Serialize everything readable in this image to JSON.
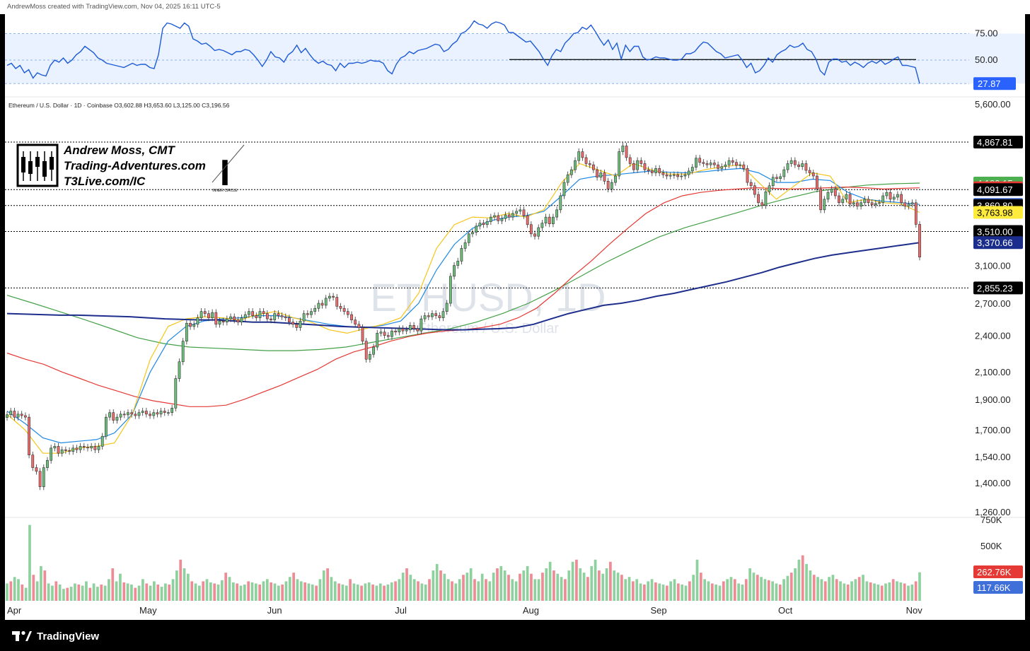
{
  "header": {
    "created_by": "AndrewMoss created with TradingView.com, Nov 04, 2025 16:11 UTC-5"
  },
  "footer": {
    "brand": "TradingView"
  },
  "legend_line": "Ethereum / U.S. Dollar · 1D · Coinbase  O3,602.88  H3,653.60  L3,125.00  C3,196.56",
  "watermark": {
    "symbol": "ETHUSD, 1D",
    "name": "Ethereum / U.S. Dollar"
  },
  "author": {
    "line1": "Andrew Moss, CMT",
    "line2": "Trading-Adventures.com",
    "line3": "T3Live.com/IC",
    "logo_caption": "INNER CIRCLE"
  },
  "colors": {
    "up": "#6bbf7b",
    "down": "#ef6b6b",
    "sma200": "#1e2e8c",
    "sma50": "#e53935",
    "sma100": "#43a047",
    "ema10": "#f5c518",
    "ema20": "#1e88e5",
    "rsi": "#1e5bd6"
  },
  "chart_data": [
    {
      "type": "line",
      "panel": "RSI",
      "ylim": [
        20,
        90
      ],
      "levels": [
        75,
        50,
        27.87
      ],
      "y_tick_labels": [
        "75.00",
        "50.00"
      ],
      "last_value_label": "27.87",
      "horizontal_line_level": 50.5,
      "values": [
        45,
        47,
        42,
        45,
        38,
        41,
        33,
        38,
        36,
        35,
        45,
        50,
        48,
        52,
        47,
        50,
        55,
        58,
        63,
        60,
        57,
        52,
        50,
        47,
        46,
        45,
        44,
        43,
        45,
        47,
        45,
        46,
        46,
        43,
        42,
        55,
        80,
        85,
        84,
        82,
        80,
        85,
        82,
        70,
        68,
        65,
        66,
        63,
        59,
        60,
        59,
        57,
        55,
        58,
        58,
        60,
        59,
        55,
        50,
        44,
        50,
        58,
        53,
        52,
        48,
        55,
        58,
        64,
        57,
        61,
        55,
        50,
        47,
        49,
        46,
        45,
        40,
        47,
        43,
        47,
        47,
        48,
        47,
        48,
        50,
        49,
        49,
        47,
        40,
        37,
        46,
        52,
        54,
        58,
        56,
        59,
        60,
        61,
        63,
        65,
        64,
        58,
        60,
        65,
        68,
        75,
        77,
        81,
        87,
        84,
        83,
        80,
        84,
        86,
        85,
        83,
        76,
        76,
        73,
        70,
        67,
        68,
        63,
        58,
        51,
        45,
        54,
        60,
        58,
        66,
        70,
        75,
        76,
        81,
        79,
        83,
        77,
        70,
        64,
        69,
        60,
        66,
        51,
        64,
        58,
        63,
        63,
        53,
        50,
        51,
        53,
        52,
        52,
        51,
        50,
        50,
        51,
        56,
        56,
        58,
        63,
        67,
        66,
        62,
        58,
        56,
        52,
        53,
        54,
        55,
        50,
        43,
        47,
        38,
        40,
        45,
        52,
        48,
        55,
        58,
        60,
        64,
        62,
        63,
        66,
        60,
        58,
        51,
        40,
        36,
        48,
        51,
        51,
        48,
        49,
        45,
        48,
        46,
        43,
        47,
        49,
        47,
        50,
        46,
        48,
        51,
        53,
        45,
        45,
        44,
        43,
        27.87
      ]
    },
    {
      "type": "candlestick",
      "panel": "Price",
      "ylim": [
        1240,
        5700
      ],
      "scale": "log",
      "x_tick_labels": [
        "Apr",
        "May",
        "Jun",
        "Jul",
        "Aug",
        "Sep",
        "Oct",
        "Nov"
      ],
      "y_tick_labels": [
        "5,600.00",
        "3,100.00",
        "2,700.00",
        "2,400.00",
        "2,100.00",
        "1,900.00",
        "1,700.00",
        "1,540.00",
        "1,400.00",
        "1,260.00"
      ],
      "price_labels": [
        {
          "text": "4,867.81",
          "value": 4867.81,
          "style": "black"
        },
        {
          "text": "4,190.15",
          "value": 4190.15,
          "style": "green"
        },
        {
          "text": "4,118.83",
          "value": 4118.83,
          "style": "red"
        },
        {
          "text": "4,091.67",
          "value": 4091.67,
          "style": "black"
        },
        {
          "text": "3,875.74",
          "value": 3875.74,
          "style": "blue"
        },
        {
          "text": "3,860.80",
          "value": 3860.8,
          "style": "black"
        },
        {
          "text": "3,763.98",
          "value": 3763.98,
          "style": "yellow"
        },
        {
          "text": "3,510.00",
          "value": 3510.0,
          "style": "black"
        },
        {
          "text": "3,370.66",
          "value": 3370.66,
          "style": "navy"
        },
        {
          "text": "2,855.23",
          "value": 2855.23,
          "style": "black"
        }
      ],
      "horizontal_levels": [
        4867.81,
        4091.67,
        3860.8,
        3510.0,
        2855.23
      ],
      "closes": [
        1796,
        1820,
        1780,
        1800,
        1790,
        1780,
        1550,
        1480,
        1460,
        1380,
        1480,
        1520,
        1590,
        1600,
        1560,
        1580,
        1575,
        1570,
        1590,
        1580,
        1600,
        1595,
        1590,
        1600,
        1580,
        1600,
        1660,
        1780,
        1810,
        1760,
        1780,
        1800,
        1795,
        1810,
        1800,
        1790,
        1810,
        1820,
        1800,
        1790,
        1810,
        1800,
        1820,
        1810,
        1810,
        1840,
        2050,
        2180,
        2350,
        2510,
        2480,
        2500,
        2560,
        2620,
        2600,
        2560,
        2610,
        2500,
        2530,
        2520,
        2550,
        2570,
        2540,
        2520,
        2560,
        2590,
        2620,
        2580,
        2560,
        2620,
        2600,
        2550,
        2540,
        2600,
        2580,
        2570,
        2560,
        2520,
        2500,
        2470,
        2530,
        2600,
        2590,
        2620,
        2650,
        2700,
        2680,
        2750,
        2770,
        2760,
        2670,
        2650,
        2620,
        2590,
        2540,
        2500,
        2470,
        2350,
        2200,
        2240,
        2300,
        2420,
        2430,
        2400,
        2390,
        2440,
        2430,
        2460,
        2440,
        2450,
        2490,
        2460,
        2440,
        2550,
        2580,
        2570,
        2600,
        2580,
        2560,
        2620,
        2700,
        2980,
        3100,
        3150,
        3300,
        3370,
        3480,
        3500,
        3580,
        3620,
        3600,
        3640,
        3700,
        3720,
        3650,
        3680,
        3730,
        3700,
        3750,
        3780,
        3800,
        3720,
        3600,
        3480,
        3450,
        3560,
        3620,
        3700,
        3610,
        3700,
        3800,
        4000,
        4200,
        4320,
        4400,
        4550,
        4700,
        4600,
        4500,
        4480,
        4400,
        4280,
        4350,
        4220,
        4100,
        4200,
        4300,
        4700,
        4800,
        4600,
        4500,
        4400,
        4550,
        4500,
        4400,
        4380,
        4350,
        4420,
        4350,
        4320,
        4300,
        4310,
        4320,
        4290,
        4300,
        4320,
        4380,
        4440,
        4590,
        4520,
        4500,
        4480,
        4510,
        4480,
        4420,
        4450,
        4480,
        4550,
        4520,
        4470,
        4480,
        4420,
        4200,
        4150,
        4020,
        3900,
        3860,
        4060,
        4150,
        4280,
        4260,
        4290,
        4400,
        4500,
        4550,
        4480,
        4450,
        4500,
        4390,
        4350,
        4300,
        4100,
        3800,
        3950,
        4050,
        4100,
        4000,
        3900,
        3950,
        4020,
        3880,
        3900,
        3850,
        3900,
        3950,
        3900,
        3870,
        3890,
        3900,
        4000,
        4050,
        3950,
        3980,
        4020,
        3900,
        3850,
        3880,
        3900,
        3602.88,
        3196.56
      ],
      "sma200": [
        2600,
        2595,
        2590,
        2585,
        2585,
        2580,
        2575,
        2570,
        2560,
        2550,
        2545,
        2540,
        2540,
        2530,
        2520,
        2520,
        2510,
        2500,
        2490,
        2480,
        2475,
        2470,
        2465,
        2460,
        2455,
        2450,
        2450,
        2455,
        2460,
        2470,
        2500,
        2550,
        2600,
        2640,
        2680,
        2700,
        2730,
        2770,
        2800,
        2840,
        2880,
        2920,
        2970,
        3020,
        3080,
        3130,
        3180,
        3220,
        3250,
        3280,
        3310,
        3340,
        3370.66
      ],
      "sma50": [
        2250,
        2200,
        2160,
        2100,
        2050,
        2000,
        1960,
        1920,
        1890,
        1870,
        1850,
        1850,
        1860,
        1900,
        1950,
        2000,
        2060,
        2120,
        2200,
        2260,
        2300,
        2350,
        2390,
        2420,
        2440,
        2450,
        2470,
        2500,
        2560,
        2650,
        2800,
        2980,
        3150,
        3350,
        3550,
        3750,
        3900,
        4000,
        4050,
        4080,
        4100,
        4120,
        4110,
        4100,
        4110,
        4120,
        4130,
        4120,
        4100,
        4110,
        4118.83
      ],
      "sma100": [
        2780,
        2700,
        2620,
        2540,
        2460,
        2380,
        2330,
        2300,
        2290,
        2280,
        2270,
        2270,
        2280,
        2300,
        2340,
        2380,
        2420,
        2460,
        2520,
        2600,
        2700,
        2830,
        2980,
        3140,
        3290,
        3440,
        3560,
        3660,
        3760,
        3870,
        3970,
        4060,
        4120,
        4160,
        4180,
        4190.15
      ],
      "ema10": [
        1800,
        1700,
        1560,
        1560,
        1590,
        1600,
        1620,
        1800,
        2200,
        2480,
        2550,
        2570,
        2560,
        2540,
        2590,
        2620,
        2560,
        2520,
        2450,
        2420,
        2460,
        2500,
        2560,
        2800,
        3300,
        3600,
        3700,
        3690,
        3750,
        3700,
        3800,
        4200,
        4500,
        4400,
        4300,
        4500,
        4400,
        4330,
        4330,
        4400,
        4450,
        4480,
        4200,
        3950,
        4150,
        4350,
        4300,
        3900,
        3950,
        3900,
        3880,
        3763.98
      ],
      "ema20": [
        1820,
        1740,
        1650,
        1620,
        1630,
        1640,
        1680,
        1800,
        2100,
        2350,
        2480,
        2530,
        2550,
        2560,
        2580,
        2580,
        2560,
        2530,
        2500,
        2480,
        2470,
        2490,
        2530,
        2700,
        3050,
        3350,
        3550,
        3650,
        3700,
        3720,
        3780,
        4000,
        4250,
        4300,
        4320,
        4350,
        4380,
        4360,
        4350,
        4370,
        4400,
        4420,
        4350,
        4200,
        4200,
        4250,
        4230,
        4050,
        3950,
        3920,
        3900,
        3875.74
      ],
      "volume": {
        "ylim": [
          0,
          750000
        ],
        "y_tick_labels": [
          "750K",
          "500K"
        ],
        "last_labels": [
          "262.76K",
          "117.66K"
        ],
        "values": [
          160,
          180,
          220,
          200,
          150,
          120,
          700,
          240,
          180,
          320,
          280,
          160,
          140,
          180,
          150,
          110,
          120,
          130,
          160,
          150,
          140,
          180,
          120,
          160,
          130,
          150,
          140,
          200,
          300,
          180,
          250,
          170,
          160,
          150,
          120,
          140,
          200,
          160,
          140,
          180,
          150,
          130,
          160,
          150,
          200,
          280,
          380,
          300,
          250,
          180,
          160,
          140,
          180,
          200,
          170,
          160,
          150,
          190,
          260,
          220,
          170,
          160,
          140,
          150,
          180,
          170,
          160,
          150,
          180,
          200,
          170,
          160,
          140,
          150,
          180,
          220,
          260,
          200,
          180,
          170,
          160,
          150,
          140,
          200,
          280,
          300,
          220,
          180,
          160,
          150,
          140,
          200,
          160,
          150,
          140,
          160,
          170,
          150,
          140,
          160,
          140,
          150,
          170,
          180,
          200,
          260,
          300,
          240,
          200,
          180,
          160,
          150,
          200,
          280,
          340,
          280,
          250,
          200,
          180,
          160,
          200,
          240,
          260,
          300,
          200,
          180,
          250,
          200,
          180,
          260,
          300,
          320,
          280,
          240,
          200,
          180,
          250,
          280,
          320,
          250,
          200,
          200,
          260,
          300,
          360,
          280,
          250,
          220,
          200,
          280,
          360,
          380,
          300,
          260,
          220,
          320,
          380,
          280,
          250,
          300,
          360,
          280,
          260,
          240,
          200,
          220,
          180,
          200,
          160,
          150,
          180,
          200,
          170,
          160,
          150,
          140,
          180,
          200,
          160,
          150,
          140,
          180,
          240,
          380,
          260,
          200,
          180,
          160,
          150,
          140,
          180,
          200,
          220,
          200,
          160,
          150,
          200,
          300,
          260,
          240,
          220,
          200,
          190,
          180,
          160,
          150,
          200,
          230,
          260,
          300,
          380,
          420,
          340,
          280,
          240,
          220,
          200,
          180,
          220,
          240,
          200,
          180,
          160,
          150,
          180,
          200,
          220,
          240,
          180,
          170,
          160,
          150,
          140,
          160,
          170,
          200,
          180,
          170,
          160,
          140,
          150,
          180,
          262.76
        ],
        "ma": 117.66
      }
    }
  ]
}
